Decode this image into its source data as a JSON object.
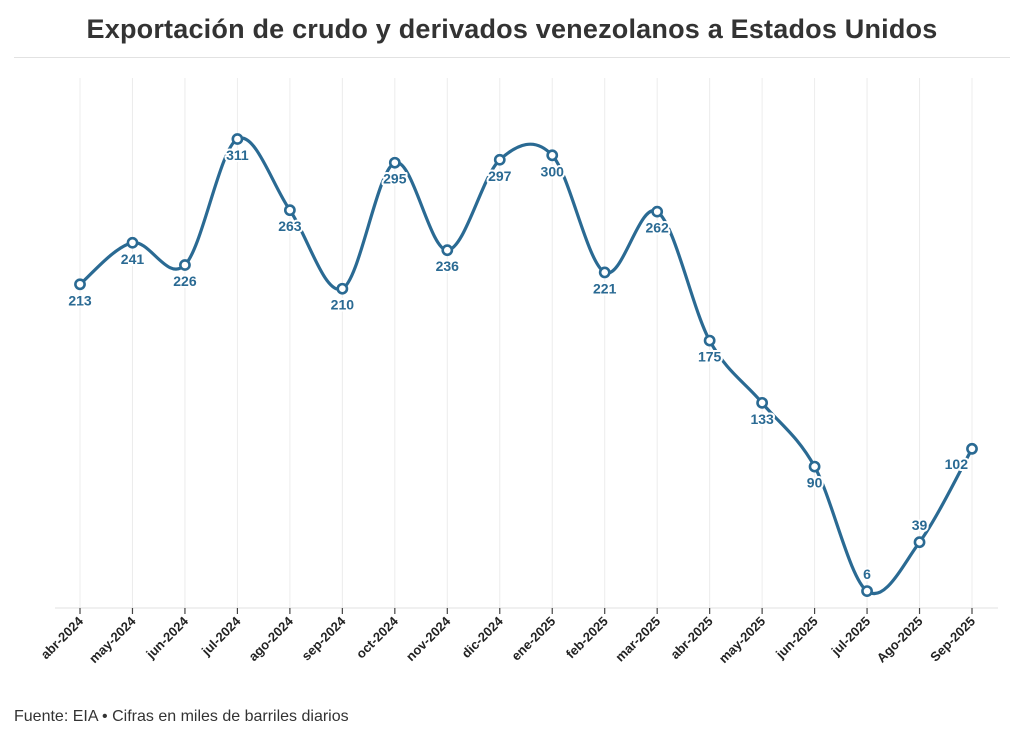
{
  "title": "Exportación de crudo y derivados venezolanos a Estados Unidos",
  "source": "Fuente: EIA • Cifras en miles de barriles diarios",
  "colors": {
    "line": "#2a6a93",
    "label": "#2a6a93",
    "grid": "#ececec"
  },
  "chart_data": {
    "type": "line",
    "title": "Exportación de crudo y derivados venezolanos a Estados Unidos",
    "categories": [
      "abr-2024",
      "may-2024",
      "jun-2024",
      "jul-2024",
      "ago-2024",
      "sep-2024",
      "oct-2024",
      "nov-2024",
      "dic-2024",
      "ene-2025",
      "feb-2025",
      "mar-2025",
      "abr-2025",
      "may-2025",
      "jun-2025",
      "jul-2025",
      "Ago-2025",
      "Sep-2025"
    ],
    "values": [
      213,
      241,
      226,
      311,
      263,
      210,
      295,
      236,
      297,
      300,
      221,
      262,
      175,
      133,
      90,
      6,
      39,
      102
    ],
    "data_labels": [
      "213",
      "241",
      "226",
      "311",
      "263",
      "210",
      "295",
      "236",
      "297",
      "300",
      "221",
      "262",
      "175",
      "133",
      "90",
      "6",
      "39",
      "102"
    ],
    "label_position": [
      "below",
      "below",
      "below",
      "below",
      "below",
      "below",
      "below",
      "below",
      "below",
      "below",
      "below",
      "below",
      "below",
      "below",
      "below",
      "above",
      "above",
      "below-left"
    ],
    "ylim": [
      0,
      320
    ],
    "grid": "vertical",
    "legend": "none"
  }
}
